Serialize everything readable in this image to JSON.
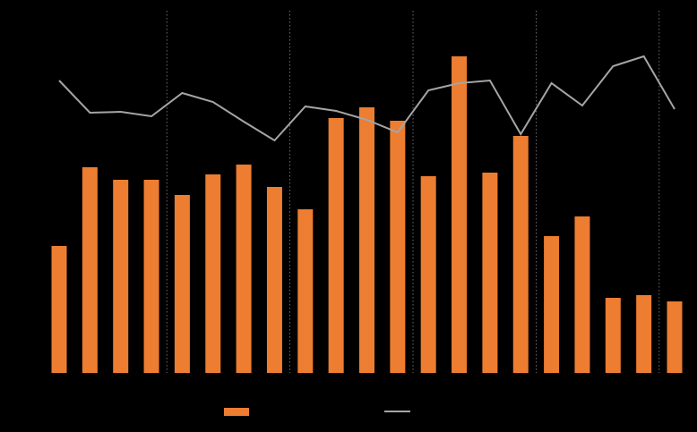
{
  "chart_data": {
    "type": "bar",
    "series": [
      {
        "color": "#ed7d31",
        "values": [
          142,
          230,
          216,
          216,
          199,
          222,
          233,
          208,
          183,
          285,
          297,
          282,
          220,
          354,
          224,
          265,
          153,
          175,
          84,
          87,
          80
        ]
      },
      {
        "type": "line",
        "axis": "y2",
        "color": "#a5a5a5",
        "values": [
          327,
          291,
          292,
          287,
          313,
          303,
          281,
          260,
          298,
          293,
          283,
          269,
          316,
          324,
          327,
          267,
          324,
          299,
          343,
          354,
          295
        ]
      }
    ],
    "ylim": [
      0,
      360
    ],
    "y2lim": [
      0,
      360
    ]
  }
}
